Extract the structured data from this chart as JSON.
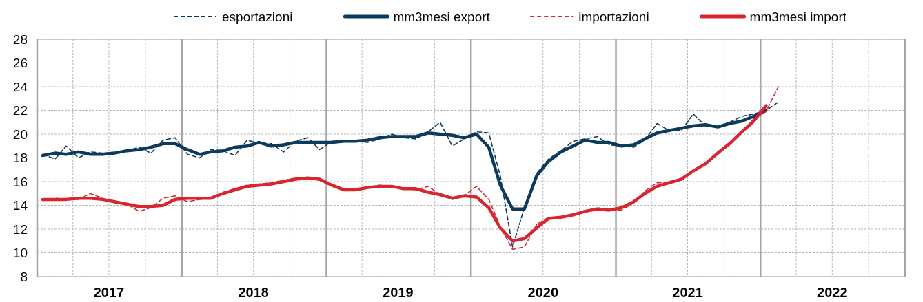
{
  "chart_data": {
    "type": "line",
    "x": [
      "2017-01-15",
      "2017-02-15",
      "2017-03-15",
      "2017-04-15",
      "2017-05-15",
      "2017-06-15",
      "2017-07-15",
      "2017-08-15",
      "2017-09-15",
      "2017-10-15",
      "2017-11-15",
      "2017-12-15",
      "2018-01-15",
      "2018-02-15",
      "2018-03-15",
      "2018-04-15",
      "2018-05-15",
      "2018-06-15",
      "2018-07-15",
      "2018-08-15",
      "2018-09-15",
      "2018-10-15",
      "2018-11-15",
      "2018-12-15",
      "2019-01-15",
      "2019-02-15",
      "2019-03-15",
      "2019-04-15",
      "2019-05-15",
      "2019-06-15",
      "2019-07-15",
      "2019-08-15",
      "2019-09-15",
      "2019-10-15",
      "2019-11-15",
      "2019-12-15",
      "2020-01-15",
      "2020-02-15",
      "2020-03-15",
      "2020-04-15",
      "2020-05-15",
      "2020-06-15",
      "2020-07-15",
      "2020-08-15",
      "2020-09-15",
      "2020-10-15",
      "2020-11-15",
      "2020-12-15",
      "2021-01-15",
      "2021-02-15",
      "2021-03-15",
      "2021-04-15",
      "2021-05-15",
      "2021-06-15",
      "2021-07-15",
      "2021-08-15",
      "2021-09-15",
      "2021-10-15",
      "2021-11-15",
      "2021-12-15",
      "2022-01-15",
      "2022-02-15"
    ],
    "series": [
      {
        "name": "esportazioni",
        "color": "#0b3a5c",
        "line_style": "dashed",
        "values": [
          18.3,
          17.9,
          19.0,
          18.0,
          18.5,
          18.4,
          18.4,
          18.6,
          18.9,
          18.4,
          19.5,
          19.7,
          18.3,
          18.0,
          18.7,
          18.6,
          18.2,
          19.5,
          19.2,
          19.2,
          18.5,
          19.4,
          19.7,
          18.7,
          19.4,
          19.4,
          19.4,
          19.3,
          19.6,
          20.0,
          19.7,
          19.6,
          20.2,
          21.0,
          19.0,
          19.6,
          20.2,
          20.1,
          16.5,
          10.5,
          13.8,
          16.7,
          17.9,
          18.6,
          19.4,
          19.6,
          19.8,
          19.1,
          19.0,
          18.9,
          19.5,
          20.9,
          20.3,
          20.3,
          21.7,
          20.7,
          20.6,
          21.0,
          21.5,
          21.7,
          22.0,
          22.7
        ]
      },
      {
        "name": "mm3mesi export",
        "color": "#0b3a5c",
        "line_style": "solid",
        "values": [
          18.2,
          18.4,
          18.3,
          18.5,
          18.3,
          18.3,
          18.4,
          18.6,
          18.7,
          18.9,
          19.2,
          19.2,
          18.7,
          18.3,
          18.5,
          18.6,
          18.9,
          19.0,
          19.3,
          19.0,
          19.1,
          19.3,
          19.3,
          19.3,
          19.3,
          19.4,
          19.4,
          19.5,
          19.7,
          19.8,
          19.8,
          19.8,
          20.1,
          20.0,
          19.9,
          19.7,
          20.0,
          18.9,
          15.7,
          13.7,
          13.7,
          16.5,
          17.7,
          18.5,
          19.0,
          19.5,
          19.3,
          19.3,
          19.0,
          19.1,
          19.6,
          20.1,
          20.3,
          20.5,
          20.7,
          20.8,
          20.6,
          20.9,
          21.1,
          21.5,
          22.0,
          null
        ]
      },
      {
        "name": "importazioni",
        "color": "#d7262f",
        "line_style": "dashed",
        "values": [
          14.4,
          14.6,
          14.5,
          14.5,
          15.0,
          14.6,
          14.2,
          14.1,
          13.5,
          13.8,
          14.6,
          14.8,
          14.3,
          14.5,
          14.6,
          15.1,
          15.4,
          15.7,
          15.8,
          15.9,
          16.1,
          16.3,
          16.3,
          16.1,
          15.6,
          15.3,
          15.3,
          15.5,
          15.7,
          15.6,
          15.4,
          15.3,
          15.6,
          14.9,
          14.5,
          14.8,
          15.6,
          14.5,
          12.2,
          10.3,
          10.5,
          12.4,
          13.0,
          13.0,
          13.2,
          13.5,
          13.8,
          13.6,
          13.6,
          14.2,
          15.2,
          15.9,
          15.9,
          16.2,
          16.8,
          17.5,
          18.3,
          19.2,
          20.1,
          21.3,
          21.9,
          24.0
        ]
      },
      {
        "name": "mm3mesi import",
        "color": "#d7262f",
        "line_style": "solid",
        "values": [
          14.5,
          14.5,
          14.5,
          14.6,
          14.6,
          14.5,
          14.3,
          14.1,
          13.9,
          13.9,
          14.0,
          14.5,
          14.6,
          14.6,
          14.6,
          15.0,
          15.3,
          15.6,
          15.7,
          15.8,
          16.0,
          16.2,
          16.3,
          16.2,
          15.7,
          15.3,
          15.3,
          15.5,
          15.6,
          15.6,
          15.4,
          15.4,
          15.1,
          14.9,
          14.6,
          14.8,
          14.7,
          13.8,
          12.1,
          11.0,
          11.2,
          12.1,
          12.9,
          13.0,
          13.2,
          13.5,
          13.7,
          13.6,
          13.8,
          14.3,
          15.0,
          15.6,
          15.9,
          16.2,
          16.9,
          17.5,
          18.4,
          19.2,
          20.2,
          21.1,
          22.4,
          null
        ]
      }
    ],
    "xlim": [
      "2017-01",
      "2023-01"
    ],
    "xticks": [
      {
        "value": "2017-01",
        "label": null
      },
      {
        "value": "2017-04",
        "label": null
      },
      {
        "value": "2017-07",
        "label": "2017"
      },
      {
        "value": "2017-10",
        "label": null
      },
      {
        "value": "2018-01",
        "label": null
      },
      {
        "value": "2018-04",
        "label": null
      },
      {
        "value": "2018-07",
        "label": "2018"
      },
      {
        "value": "2018-10",
        "label": null
      },
      {
        "value": "2019-01",
        "label": null
      },
      {
        "value": "2019-04",
        "label": null
      },
      {
        "value": "2019-07",
        "label": "2019"
      },
      {
        "value": "2019-10",
        "label": null
      },
      {
        "value": "2020-01",
        "label": null
      },
      {
        "value": "2020-04",
        "label": null
      },
      {
        "value": "2020-07",
        "label": "2020"
      },
      {
        "value": "2020-10",
        "label": null
      },
      {
        "value": "2021-01",
        "label": null
      },
      {
        "value": "2021-04",
        "label": null
      },
      {
        "value": "2021-07",
        "label": "2021"
      },
      {
        "value": "2021-10",
        "label": null
      },
      {
        "value": "2022-01",
        "label": null
      },
      {
        "value": "2022-04",
        "label": null
      },
      {
        "value": "2022-07",
        "label": "2022"
      },
      {
        "value": "2022-10",
        "label": null
      },
      {
        "value": "2023-01",
        "label": null
      }
    ],
    "ylim": [
      8,
      28
    ],
    "yticks": [
      8,
      10,
      12,
      14,
      16,
      18,
      20,
      22,
      24,
      26,
      28
    ],
    "grid": true,
    "legend": "top"
  }
}
